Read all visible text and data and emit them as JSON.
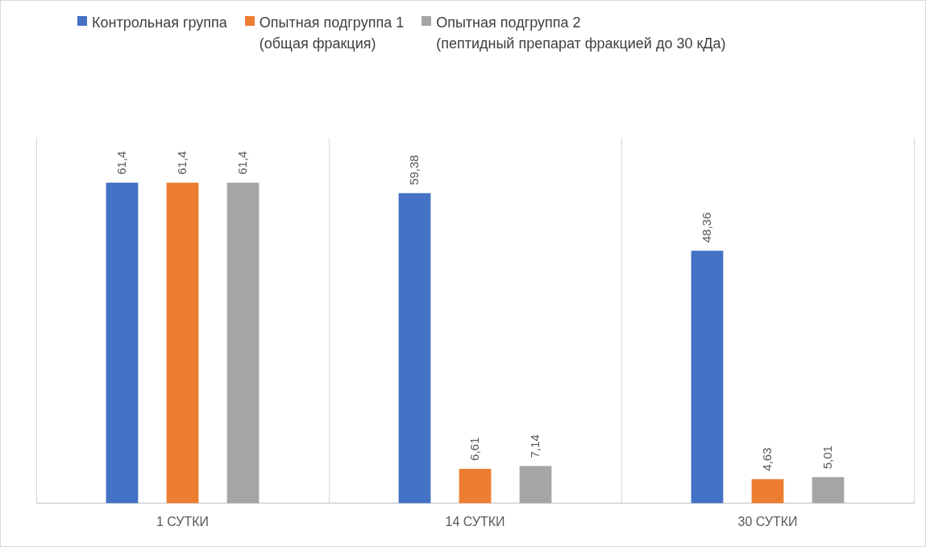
{
  "chart_data": {
    "type": "bar",
    "categories": [
      "1 СУТКИ",
      "14 СУТКИ",
      "30 СУТКИ"
    ],
    "series": [
      {
        "name": "Контрольная группа",
        "color": "#4472c4",
        "values": [
          61.4,
          59.38,
          48.36
        ],
        "value_labels": [
          "61,4",
          "59,38",
          "48,36"
        ]
      },
      {
        "name": "Опытная подгруппа 1\n(общая фракция)",
        "color": "#ed7d31",
        "values": [
          61.4,
          6.61,
          4.63
        ],
        "value_labels": [
          "61,4",
          "6,61",
          "4,63"
        ]
      },
      {
        "name": "Опытная подгруппа 2\n(пептидный препарат фракцией до 30 кДа)",
        "color": "#a5a5a5",
        "values": [
          61.4,
          7.14,
          5.01
        ],
        "value_labels": [
          "61,4",
          "7,14",
          "5,01"
        ]
      }
    ],
    "grid": "x",
    "legend": "top left"
  }
}
